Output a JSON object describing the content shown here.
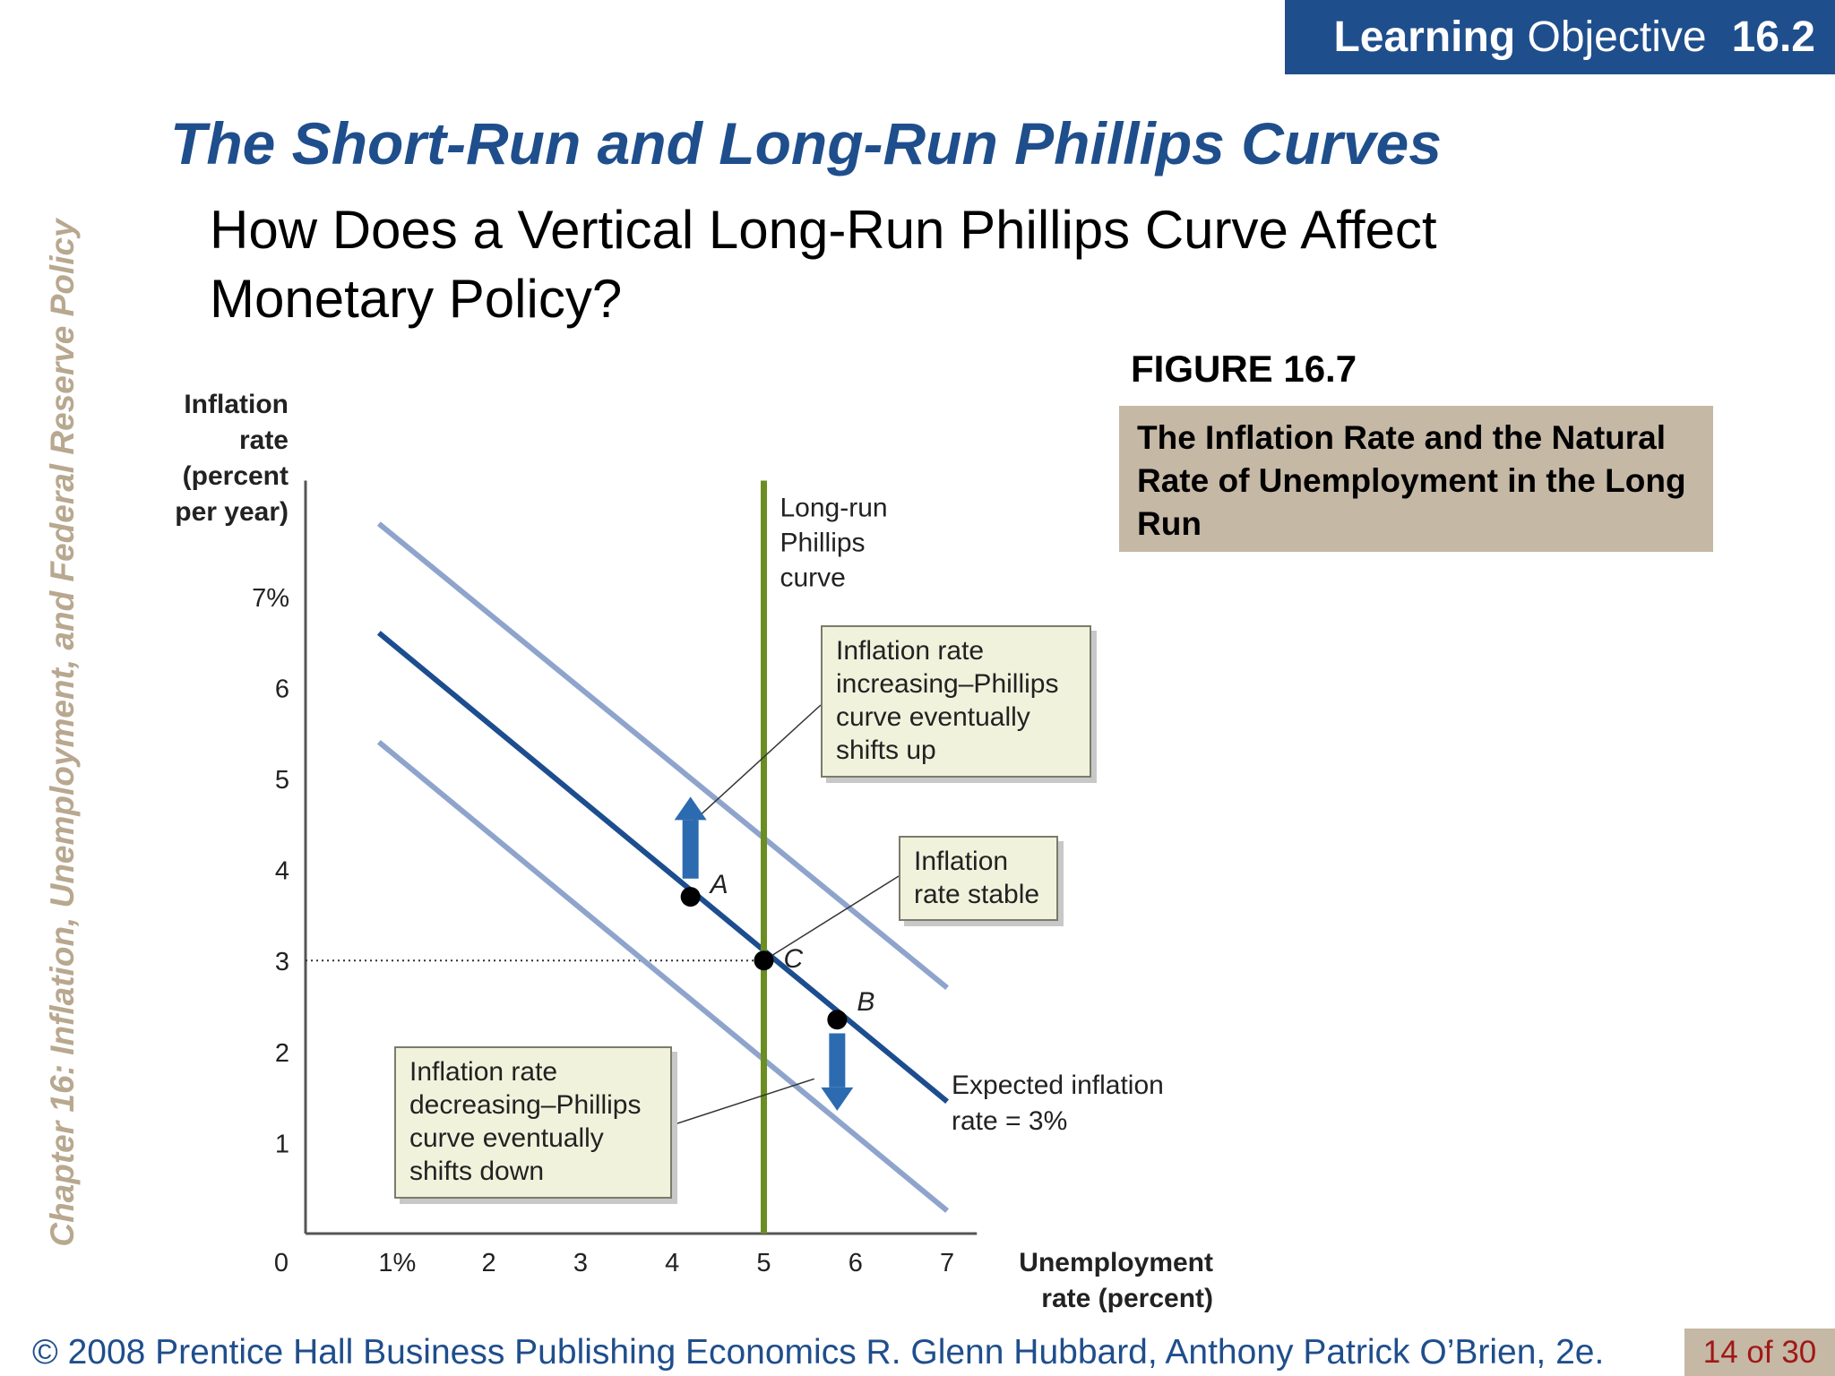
{
  "banner": {
    "bold": "Learning",
    "normal": "Objective",
    "number": "16.2"
  },
  "chapter_title": "Chapter 16:  Inflation, Unemployment, and Federal Reserve Policy",
  "slide_title": "The Short-Run and Long-Run Phillips Curves",
  "subtitle": "How Does a Vertical Long-Run Phillips Curve Affect Monetary Policy?",
  "figure": {
    "number": "FIGURE 16.7",
    "caption": "The Inflation Rate and the Natural Rate of Unemployment in the Long Run"
  },
  "footer": {
    "text": "© 2008 Prentice Hall Business Publishing   Economics  R. Glenn Hubbard, Anthony Patrick O’Brien, 2e.",
    "page": "14 of 30"
  },
  "chart_data": {
    "type": "line",
    "ylabel_lines": [
      "Inflation",
      "rate",
      "(percent",
      "per year)"
    ],
    "xlabel_lines": [
      "Unemployment",
      "rate (percent)"
    ],
    "xlim": [
      0,
      7.5
    ],
    "ylim": [
      0,
      7.8
    ],
    "x_ticks": [
      {
        "v": 0,
        "label": "0"
      },
      {
        "v": 1,
        "label": "1%"
      },
      {
        "v": 2,
        "label": "2"
      },
      {
        "v": 3,
        "label": "3"
      },
      {
        "v": 4,
        "label": "4"
      },
      {
        "v": 5,
        "label": "5"
      },
      {
        "v": 6,
        "label": "6"
      },
      {
        "v": 7,
        "label": "7"
      }
    ],
    "y_ticks": [
      {
        "v": 1,
        "label": "1"
      },
      {
        "v": 2,
        "label": "2"
      },
      {
        "v": 3,
        "label": "3"
      },
      {
        "v": 4,
        "label": "4"
      },
      {
        "v": 5,
        "label": "5"
      },
      {
        "v": 6,
        "label": "6"
      },
      {
        "v": 7,
        "label": "7%"
      }
    ],
    "series": [
      {
        "name": "Expected inflation rate = 3%",
        "points": [
          [
            0.8,
            6.6
          ],
          [
            7.0,
            1.45
          ]
        ],
        "color": "#1c4d8f",
        "role": "main"
      },
      {
        "name": "",
        "points": [
          [
            0.8,
            7.8
          ],
          [
            7.0,
            2.7
          ]
        ],
        "color": "#8ea4cc",
        "role": "shift"
      },
      {
        "name": "",
        "points": [
          [
            0.8,
            5.4
          ],
          [
            7.0,
            0.25
          ]
        ],
        "color": "#8ea4cc",
        "role": "shift"
      }
    ],
    "lrpc": {
      "x": 5,
      "label_lines": [
        "Long-run",
        "Phillips",
        "curve"
      ],
      "color": "#6b8e23"
    },
    "reference_line_y": 3,
    "points": [
      {
        "label": "A",
        "x": 4.2,
        "y": 3.7
      },
      {
        "label": "C",
        "x": 5.0,
        "y": 3.0
      },
      {
        "label": "B",
        "x": 5.8,
        "y": 2.35
      }
    ],
    "curve_label_lines": [
      "Expected inflation",
      "rate = 3%"
    ],
    "arrows": [
      {
        "direction": "up",
        "x": 4.2,
        "from": 3.9,
        "to": 4.8,
        "color": "#2c6bb0"
      },
      {
        "direction": "down",
        "x": 5.8,
        "from": 2.2,
        "to": 1.35,
        "color": "#2c6bb0"
      }
    ],
    "annotations": [
      {
        "id": "increasing",
        "lines": [
          "Inflation rate",
          "increasing–Phillips",
          "curve eventually",
          "shifts up"
        ],
        "target": [
          4.2,
          4.5
        ]
      },
      {
        "id": "stable",
        "lines": [
          "Inflation",
          "rate stable"
        ],
        "target": [
          5.0,
          3.0
        ]
      },
      {
        "id": "decreasing",
        "lines": [
          "Inflation rate",
          "decreasing–Phillips",
          "curve eventually",
          "shifts down"
        ],
        "target": [
          5.55,
          1.7
        ]
      }
    ]
  }
}
